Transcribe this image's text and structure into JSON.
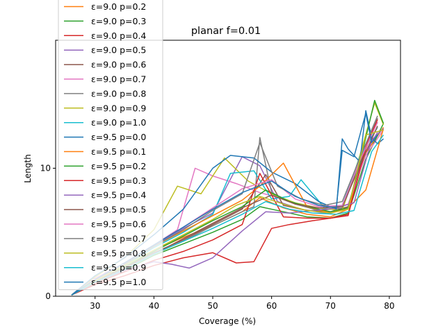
{
  "chart_data": {
    "type": "line",
    "title": "planar f=0.01",
    "xlabel": "Coverage (%)",
    "ylabel": "Length",
    "xlim": [
      23.3,
      81.9
    ],
    "ylim": [
      0,
      20
    ],
    "xticks": [
      30,
      40,
      50,
      60,
      70,
      80
    ],
    "yticks": [
      0,
      10
    ],
    "grid": false,
    "legend_position": "upper-left (clipped at top)",
    "series": [
      {
        "name": "ε=9.0 p=0.2",
        "color": "#ff7f0e",
        "x": [
          26,
          30,
          35,
          40,
          45,
          50,
          55,
          58,
          62,
          66,
          70,
          73,
          76,
          79
        ],
        "y": [
          0.1,
          1.1,
          2.2,
          3.6,
          4.6,
          5.5,
          6.6,
          7.7,
          6.9,
          6.4,
          6.2,
          6.8,
          11.2,
          13.2
        ]
      },
      {
        "name": "ε=9.0 p=0.3",
        "color": "#2ca02c",
        "x": [
          26,
          30,
          35,
          40,
          45,
          50,
          55,
          58,
          62,
          66,
          70,
          73,
          76,
          79
        ],
        "y": [
          0.1,
          1.0,
          2.0,
          3.2,
          4.1,
          5.0,
          6.0,
          7.0,
          6.6,
          6.2,
          6.1,
          6.5,
          10.7,
          13.5
        ]
      },
      {
        "name": "ε=9.0 p=0.4",
        "color": "#d62728",
        "x": [
          26,
          30,
          35,
          40,
          45,
          50,
          54,
          57,
          60,
          63,
          67,
          70,
          73,
          76,
          78
        ],
        "y": [
          0.1,
          0.9,
          1.6,
          2.4,
          3.0,
          3.4,
          2.6,
          2.7,
          5.3,
          5.6,
          5.9,
          6.1,
          6.4,
          11.5,
          13.9
        ]
      },
      {
        "name": "ε=9.0 p=0.5",
        "color": "#9467bd",
        "x": [
          26,
          30,
          35,
          40,
          45,
          50,
          55,
          58,
          61,
          65,
          69,
          72,
          75,
          78
        ],
        "y": [
          0.1,
          1.3,
          2.5,
          3.9,
          5.3,
          6.5,
          10.9,
          10.2,
          7.4,
          6.8,
          6.5,
          6.8,
          10.5,
          12.8
        ]
      },
      {
        "name": "ε=9.0 p=0.6",
        "color": "#8c564b",
        "x": [
          26,
          30,
          35,
          40,
          45,
          50,
          55,
          59,
          62,
          66,
          70,
          73,
          76,
          78
        ],
        "y": [
          0.1,
          1.2,
          2.3,
          3.4,
          4.4,
          5.6,
          6.8,
          9.5,
          7.1,
          6.7,
          6.6,
          7.0,
          11.8,
          13.6
        ]
      },
      {
        "name": "ε=9.0 p=0.7",
        "color": "#e377c2",
        "x": [
          26,
          30,
          35,
          40,
          44,
          47,
          50,
          54,
          58,
          62,
          66,
          70,
          73,
          76,
          79
        ],
        "y": [
          0.1,
          1.4,
          2.6,
          4.0,
          5.2,
          10.0,
          9.4,
          8.8,
          8.1,
          7.6,
          7.0,
          6.8,
          7.2,
          11.0,
          13.0
        ]
      },
      {
        "name": "ε=9.0 p=0.8",
        "color": "#7f7f7f",
        "x": [
          26,
          30,
          35,
          40,
          45,
          50,
          55,
          57,
          58,
          60,
          64,
          68,
          72,
          75,
          78
        ],
        "y": [
          0.1,
          1.1,
          2.1,
          3.3,
          4.3,
          5.5,
          6.6,
          7.0,
          12.4,
          8.1,
          7.2,
          6.7,
          6.9,
          10.6,
          13.9
        ]
      },
      {
        "name": "ε=9.0 p=0.9",
        "color": "#bcbd22",
        "x": [
          26,
          30,
          35,
          40,
          44,
          48,
          52,
          56,
          60,
          64,
          68,
          72,
          75,
          77.5,
          79
        ],
        "y": [
          0.1,
          1.5,
          3.0,
          5.2,
          8.6,
          8.0,
          10.8,
          9.0,
          8.0,
          7.3,
          6.9,
          6.7,
          11.0,
          15.1,
          13.4
        ]
      },
      {
        "name": "ε=9.0 p=1.0",
        "color": "#17becf",
        "x": [
          26,
          30,
          35,
          40,
          45,
          50,
          53,
          57,
          60,
          63,
          65,
          69,
          72,
          75,
          78
        ],
        "y": [
          0.1,
          1.2,
          2.4,
          3.8,
          5.0,
          6.4,
          9.6,
          9.8,
          7.6,
          7.8,
          9.1,
          6.9,
          7.1,
          10.9,
          13.2
        ]
      },
      {
        "name": "ε=9.5 p=0.0",
        "color": "#1f77b4",
        "x": [
          26,
          30,
          35,
          40,
          45,
          50,
          53,
          57,
          60,
          64,
          68,
          71,
          72,
          73,
          75,
          76,
          77,
          78,
          79
        ],
        "y": [
          0.1,
          1.6,
          3.0,
          4.8,
          6.8,
          10.0,
          11.0,
          10.8,
          9.7,
          8.8,
          7.4,
          6.8,
          12.3,
          11.5,
          10.5,
          14.5,
          12.4,
          11.9,
          12.3
        ]
      },
      {
        "name": "ε=9.5 p=0.1",
        "color": "#ff7f0e",
        "x": [
          26,
          30,
          35,
          40,
          45,
          50,
          55,
          58,
          62,
          66,
          70,
          73,
          76,
          79
        ],
        "y": [
          0.1,
          1.2,
          2.5,
          3.9,
          5.1,
          6.3,
          7.5,
          8.6,
          10.4,
          7.0,
          6.5,
          6.9,
          8.3,
          13.1
        ]
      },
      {
        "name": "ε=9.5 p=0.2",
        "color": "#2ca02c",
        "x": [
          26,
          30,
          35,
          40,
          45,
          50,
          55,
          59,
          63,
          67,
          70,
          73,
          75.5,
          77.5,
          79
        ],
        "y": [
          0.1,
          1.1,
          2.3,
          3.5,
          4.7,
          5.9,
          7.0,
          8.3,
          7.4,
          6.9,
          6.6,
          6.9,
          11.4,
          15.3,
          13.5
        ]
      },
      {
        "name": "ε=9.5 p=0.3",
        "color": "#d62728",
        "x": [
          26,
          30,
          35,
          40,
          45,
          50,
          55,
          58,
          62,
          66,
          70,
          73,
          76,
          78
        ],
        "y": [
          0.1,
          1.0,
          1.9,
          2.8,
          3.5,
          4.4,
          5.6,
          9.6,
          6.2,
          6.1,
          6.1,
          6.3,
          11.7,
          13.8
        ]
      },
      {
        "name": "ε=9.5 p=0.4",
        "color": "#9467bd",
        "x": [
          26,
          30,
          35,
          40,
          43,
          46,
          50,
          55,
          59,
          63,
          67,
          71,
          74,
          77,
          79
        ],
        "y": [
          0.1,
          1.1,
          2.0,
          2.7,
          2.5,
          2.2,
          3.0,
          5.1,
          6.6,
          6.5,
          6.7,
          6.9,
          7.3,
          12.2,
          13.1
        ]
      },
      {
        "name": "ε=9.5 p=0.5",
        "color": "#8c564b",
        "x": [
          26,
          30,
          35,
          40,
          45,
          50,
          55,
          60,
          64,
          68,
          72,
          75,
          78
        ],
        "y": [
          0.1,
          1.2,
          2.2,
          3.3,
          4.5,
          5.7,
          6.9,
          7.9,
          7.2,
          6.9,
          7.0,
          10.2,
          13.3
        ]
      },
      {
        "name": "ε=9.5 p=0.6",
        "color": "#e377c2",
        "x": [
          26,
          30,
          35,
          40,
          45,
          50,
          55,
          60,
          64,
          68,
          72,
          75,
          78
        ],
        "y": [
          0.1,
          1.3,
          2.6,
          4.0,
          5.4,
          6.9,
          8.4,
          9.1,
          7.6,
          7.0,
          7.1,
          10.6,
          13.6
        ]
      },
      {
        "name": "ε=9.5 p=0.7",
        "color": "#7f7f7f",
        "x": [
          26,
          30,
          35,
          40,
          45,
          50,
          55,
          58,
          61,
          65,
          69,
          72,
          75,
          78
        ],
        "y": [
          0.1,
          1.3,
          2.5,
          3.9,
          5.2,
          6.7,
          8.0,
          12.0,
          8.6,
          7.6,
          7.1,
          7.4,
          10.8,
          14.1
        ]
      },
      {
        "name": "ε=9.5 p=0.8",
        "color": "#bcbd22",
        "x": [
          26,
          30,
          35,
          40,
          45,
          50,
          54,
          58,
          62,
          66,
          70,
          73,
          76,
          79
        ],
        "y": [
          0.1,
          1.2,
          2.4,
          3.6,
          4.8,
          6.0,
          7.1,
          7.8,
          7.2,
          6.7,
          6.5,
          6.8,
          12.6,
          13.0
        ]
      },
      {
        "name": "ε=9.5 p=0.9",
        "color": "#17becf",
        "x": [
          26,
          30,
          35,
          40,
          45,
          50,
          55,
          59,
          63,
          67,
          71,
          74,
          77,
          79
        ],
        "y": [
          0.1,
          1.1,
          2.1,
          3.3,
          4.3,
          5.3,
          6.4,
          7.4,
          6.8,
          6.5,
          6.4,
          6.7,
          11.3,
          12.6
        ]
      },
      {
        "name": "ε=9.5 p=1.0",
        "color": "#1f77b4",
        "x": [
          26,
          30,
          35,
          40,
          45,
          50,
          55,
          60,
          64,
          68,
          71,
          72,
          74,
          76,
          77,
          78
        ],
        "y": [
          0.1,
          1.3,
          2.6,
          4.0,
          5.4,
          6.8,
          8.1,
          9.0,
          7.8,
          7.1,
          6.9,
          11.4,
          10.9,
          14.3,
          12.0,
          12.6
        ]
      }
    ]
  }
}
